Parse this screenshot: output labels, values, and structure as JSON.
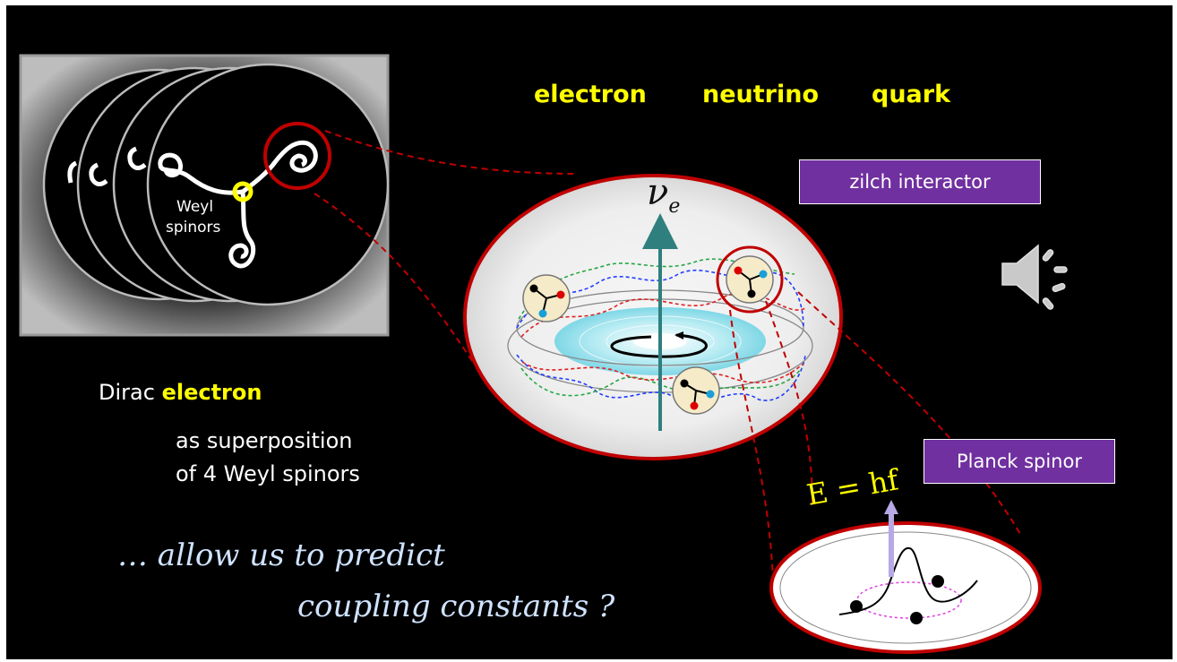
{
  "header": {
    "categories": [
      "electron",
      "neutrino",
      "quark"
    ]
  },
  "boxes": {
    "zilch": "zilch interactor",
    "planck": "Planck spinor"
  },
  "inset": {
    "label_line1": "Weyl",
    "label_line2": "spinors"
  },
  "body": {
    "dirac_prefix": "Dirac",
    "dirac_highlight": "electron",
    "superposition_line1": "as superposition",
    "superposition_line2": "of 4 Weyl  spinors",
    "predict_line1": "… allow us to predict",
    "predict_line2": "coupling constants ?"
  },
  "formulas": {
    "neutrino_symbol": "ν",
    "neutrino_subscript": "e",
    "energy_equation": "E = hf"
  },
  "colors": {
    "background": "#000000",
    "highlight": "#ffff00",
    "box_fill": "#7030a0",
    "outline_red": "#c00000",
    "italic_text": "#cfe3ff"
  },
  "icons": [
    "speaker-icon"
  ]
}
